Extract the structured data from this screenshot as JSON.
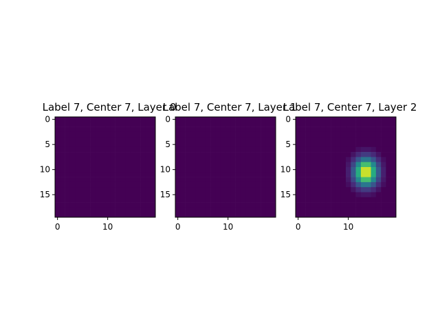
{
  "chart_data": [
    {
      "type": "heatmap",
      "title": "Label 7, Center 7, Layer 0",
      "grid_size": [
        20,
        20
      ],
      "colormap": "viridis",
      "vmin": 0,
      "vmax": 1,
      "xticks": [
        0,
        10
      ],
      "yticks": [
        0,
        5,
        10,
        15
      ],
      "grid": false,
      "blob": null
    },
    {
      "type": "heatmap",
      "title": "Label 7, Center 7, Layer 1",
      "grid_size": [
        20,
        20
      ],
      "colormap": "viridis",
      "vmin": 0,
      "vmax": 1,
      "xticks": [
        0,
        10
      ],
      "yticks": [
        0,
        5,
        10,
        15
      ],
      "grid": false,
      "blob": null
    },
    {
      "type": "heatmap",
      "title": "Label 7, Center 7, Layer 2",
      "grid_size": [
        20,
        20
      ],
      "colormap": "viridis",
      "vmin": 0,
      "vmax": 1,
      "xticks": [
        0,
        10
      ],
      "yticks": [
        0,
        5,
        10,
        15
      ],
      "grid": false,
      "blob": {
        "peak_row": 10.5,
        "peak_col": 13.5,
        "sigma_row": 1.9,
        "sigma_col": 1.6,
        "peak_value": 1.0
      }
    }
  ]
}
